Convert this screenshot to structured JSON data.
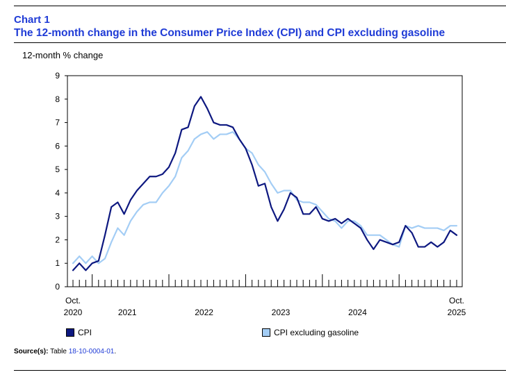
{
  "header": {
    "chart_number": "Chart 1",
    "title": "The 12-month change in the Consumer Price Index (CPI) and CPI excluding gasoline"
  },
  "colors": {
    "cpi": "#0d1880",
    "cpi_ex_gas": "#a3cdf5",
    "title": "#1f3bd6"
  },
  "chart_data": {
    "type": "line",
    "title": "The 12-month change in the Consumer Price Index (CPI) and CPI excluding gasoline",
    "ylabel": "12-month % change",
    "xlabel": "",
    "ylim": [
      0,
      9
    ],
    "yticks": [
      "0",
      "1",
      "2",
      "3",
      "4",
      "5",
      "6",
      "7",
      "8",
      "9"
    ],
    "x_start": "Oct. 2020",
    "x_end": "Oct. 2025",
    "x_tick_labels": [
      {
        "line1": "Oct.",
        "line2": "2020"
      },
      {
        "line1": "",
        "line2": "2021"
      },
      {
        "line1": "",
        "line2": "2022"
      },
      {
        "line1": "",
        "line2": "2023"
      },
      {
        "line1": "",
        "line2": "2024"
      },
      {
        "line1": "Oct.",
        "line2": "2025"
      }
    ],
    "legend_position": "bottom",
    "grid": false,
    "series": [
      {
        "name": "CPI",
        "values": [
          0.7,
          1.0,
          0.7,
          1.0,
          1.1,
          2.2,
          3.4,
          3.6,
          3.1,
          3.7,
          4.1,
          4.4,
          4.7,
          4.7,
          4.8,
          5.1,
          5.7,
          6.7,
          6.8,
          7.7,
          8.1,
          7.6,
          7.0,
          6.9,
          6.9,
          6.8,
          6.3,
          5.9,
          5.2,
          4.3,
          4.4,
          3.4,
          2.8,
          3.3,
          4.0,
          3.8,
          3.1,
          3.1,
          3.4,
          2.9,
          2.8,
          2.9,
          2.7,
          2.9,
          2.7,
          2.5,
          2.0,
          1.6,
          2.0,
          1.9,
          1.8,
          1.9,
          2.6,
          2.3,
          1.7,
          1.7,
          1.9,
          1.7,
          1.9,
          2.4,
          2.2
        ]
      },
      {
        "name": "CPI excluding gasoline",
        "values": [
          1.0,
          1.3,
          1.0,
          1.3,
          1.0,
          1.2,
          1.9,
          2.5,
          2.2,
          2.8,
          3.2,
          3.5,
          3.6,
          3.6,
          4.0,
          4.3,
          4.7,
          5.5,
          5.8,
          6.3,
          6.5,
          6.6,
          6.3,
          6.5,
          6.5,
          6.6,
          6.3,
          5.9,
          5.7,
          5.2,
          4.9,
          4.4,
          4.0,
          4.1,
          4.1,
          3.7,
          3.6,
          3.6,
          3.5,
          3.2,
          2.9,
          2.8,
          2.5,
          2.8,
          2.8,
          2.6,
          2.2,
          2.2,
          2.2,
          2.0,
          1.8,
          1.7,
          2.6,
          2.5,
          2.6,
          2.5,
          2.5,
          2.5,
          2.4,
          2.6,
          2.6
        ]
      }
    ]
  },
  "source": {
    "label": "Source(s):",
    "text": "Table",
    "link": "18-10-0004-01",
    "suffix": "."
  }
}
